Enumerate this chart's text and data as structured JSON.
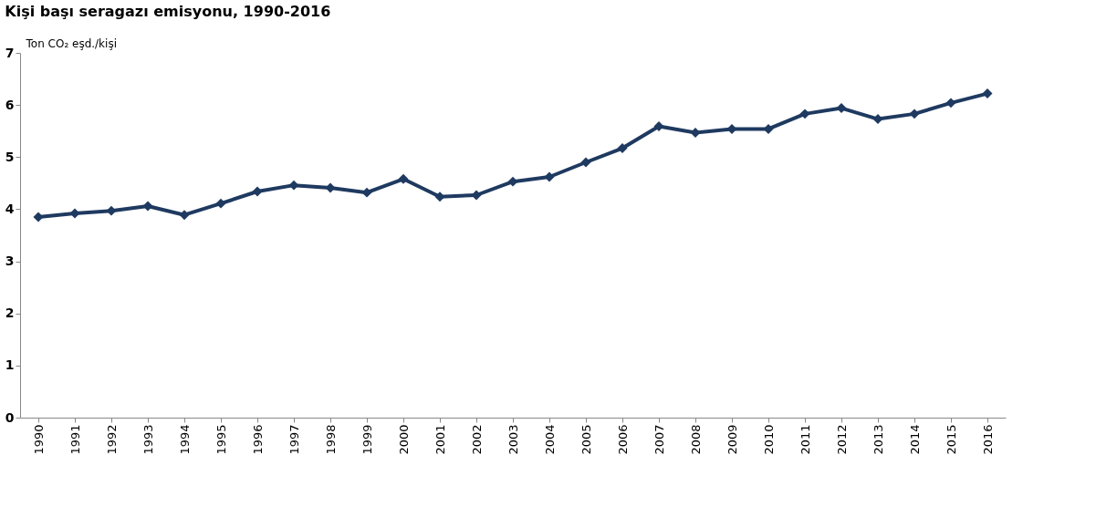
{
  "chart_data": {
    "type": "line",
    "title": "Kişi başı seragazı emisyonu, 1990-2016",
    "ylabel": "Ton CO₂ eşd./kişi",
    "categories": [
      "1990",
      "1991",
      "1992",
      "1993",
      "1994",
      "1995",
      "1996",
      "1997",
      "1998",
      "1999",
      "2000",
      "2001",
      "2002",
      "2003",
      "2004",
      "2005",
      "2006",
      "2007",
      "2008",
      "2009",
      "2010",
      "2011",
      "2012",
      "2013",
      "2014",
      "2015",
      "2016"
    ],
    "series": [
      {
        "color": "#1f3a60",
        "values": [
          3.85,
          3.92,
          3.97,
          4.06,
          3.89,
          4.11,
          4.34,
          4.46,
          4.41,
          4.32,
          4.58,
          4.24,
          4.27,
          4.53,
          4.62,
          4.9,
          5.17,
          5.59,
          5.47,
          5.54,
          5.54,
          5.83,
          5.94,
          5.73,
          5.83,
          6.04,
          6.22
        ]
      }
    ],
    "ylim": [
      0,
      7
    ],
    "yticks": [
      0,
      1,
      2,
      3,
      4,
      5,
      6,
      7
    ],
    "grid": false,
    "legend": false,
    "marker": "diamond",
    "line_style": "solid"
  }
}
